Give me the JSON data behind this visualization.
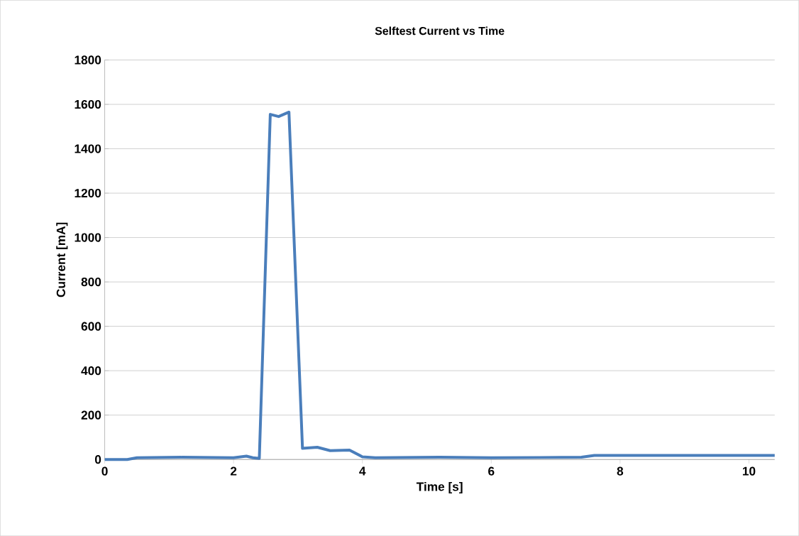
{
  "chart_data": {
    "type": "line",
    "title": "Selftest Current vs Time",
    "xlabel": "Time [s]",
    "ylabel": "Current [mA]",
    "x": [
      0,
      0.35,
      0.5,
      1.2,
      2.0,
      2.2,
      2.3,
      2.4,
      2.57,
      2.7,
      2.86,
      3.07,
      3.3,
      3.5,
      3.8,
      4.0,
      4.2,
      5.2,
      6.0,
      7.4,
      7.6,
      10.4
    ],
    "series": [
      {
        "color": "#4a7ebb",
        "values": [
          0,
          0,
          8,
          10,
          8,
          15,
          8,
          5,
          1555,
          1545,
          1565,
          50,
          55,
          40,
          42,
          12,
          8,
          10,
          8,
          10,
          18,
          18
        ]
      }
    ],
    "xlim": [
      0,
      10.4
    ],
    "ylim": [
      0,
      1800
    ],
    "xticks": [
      0,
      2,
      4,
      6,
      8,
      10
    ],
    "yticks": [
      0,
      200,
      400,
      600,
      800,
      1000,
      1200,
      1400,
      1600,
      1800
    ],
    "grid": "y"
  }
}
